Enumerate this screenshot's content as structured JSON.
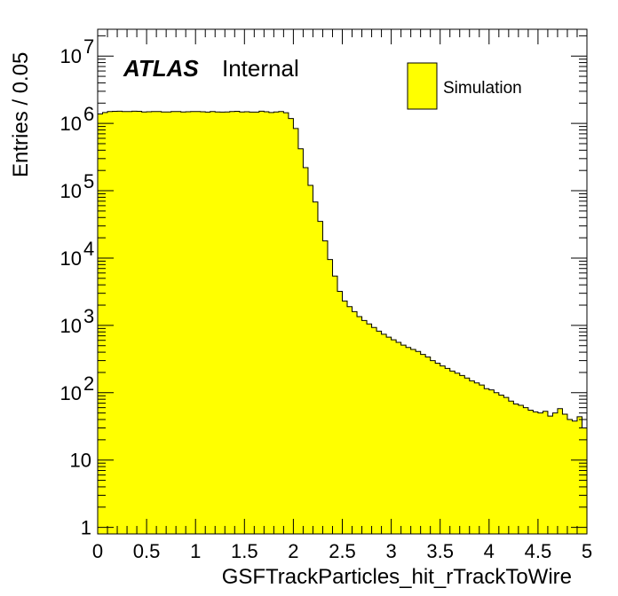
{
  "colors": {
    "fill": "#ffff00",
    "line": "#000000",
    "background": "#ffffff"
  },
  "labels": {
    "atlas": "ATLAS",
    "status": "Internal"
  },
  "legend": {
    "entry": "Simulation",
    "placement": "top-right"
  },
  "chart_data": {
    "type": "bar",
    "subtype": "histogram",
    "xlabel": "GSFTrackParticles_hit_rTrackToWire",
    "ylabel": "Entries / 0.05",
    "xlim": [
      0,
      5
    ],
    "ylim": [
      0.8,
      25000000
    ],
    "yscale": "log",
    "bin_width": 0.05,
    "grid": false,
    "xticks": [
      {
        "v": 0,
        "label": "0"
      },
      {
        "v": 0.5,
        "label": "0.5"
      },
      {
        "v": 1,
        "label": "1"
      },
      {
        "v": 1.5,
        "label": "1.5"
      },
      {
        "v": 2,
        "label": "2"
      },
      {
        "v": 2.5,
        "label": "2.5"
      },
      {
        "v": 3,
        "label": "3"
      },
      {
        "v": 3.5,
        "label": "3.5"
      },
      {
        "v": 4,
        "label": "4"
      },
      {
        "v": 4.5,
        "label": "4.5"
      },
      {
        "v": 5,
        "label": "5"
      }
    ],
    "yticks": [
      {
        "v": 1,
        "base": "1",
        "exp": ""
      },
      {
        "v": 10,
        "base": "10",
        "exp": ""
      },
      {
        "v": 100,
        "base": "10",
        "exp": "2"
      },
      {
        "v": 1000,
        "base": "10",
        "exp": "3"
      },
      {
        "v": 10000,
        "base": "10",
        "exp": "4"
      },
      {
        "v": 100000,
        "base": "10",
        "exp": "5"
      },
      {
        "v": 1000000,
        "base": "10",
        "exp": "6"
      },
      {
        "v": 10000000,
        "base": "10",
        "exp": "7"
      }
    ],
    "values": [
      1380000,
      1450000,
      1500000,
      1510000,
      1520000,
      1500000,
      1500000,
      1520000,
      1510000,
      1480000,
      1490000,
      1500000,
      1500000,
      1480000,
      1480000,
      1500000,
      1500000,
      1480000,
      1490000,
      1500000,
      1500000,
      1490000,
      1470000,
      1500000,
      1480000,
      1470000,
      1480000,
      1500000,
      1510000,
      1480000,
      1490000,
      1470000,
      1470000,
      1520000,
      1490000,
      1450000,
      1480000,
      1500000,
      1440000,
      1180000,
      840000,
      420000,
      220000,
      120000,
      68000,
      35000,
      18000,
      9500,
      5400,
      3200,
      2300,
      1900,
      1600,
      1350,
      1180,
      1050,
      930,
      820,
      740,
      670,
      610,
      560,
      510,
      470,
      440,
      410,
      370,
      340,
      300,
      275,
      250,
      230,
      210,
      195,
      180,
      165,
      150,
      140,
      130,
      115,
      110,
      100,
      92,
      85,
      75,
      68,
      65,
      60,
      55,
      52,
      50,
      53,
      45,
      50,
      58,
      48,
      40,
      38,
      44,
      30
    ]
  }
}
